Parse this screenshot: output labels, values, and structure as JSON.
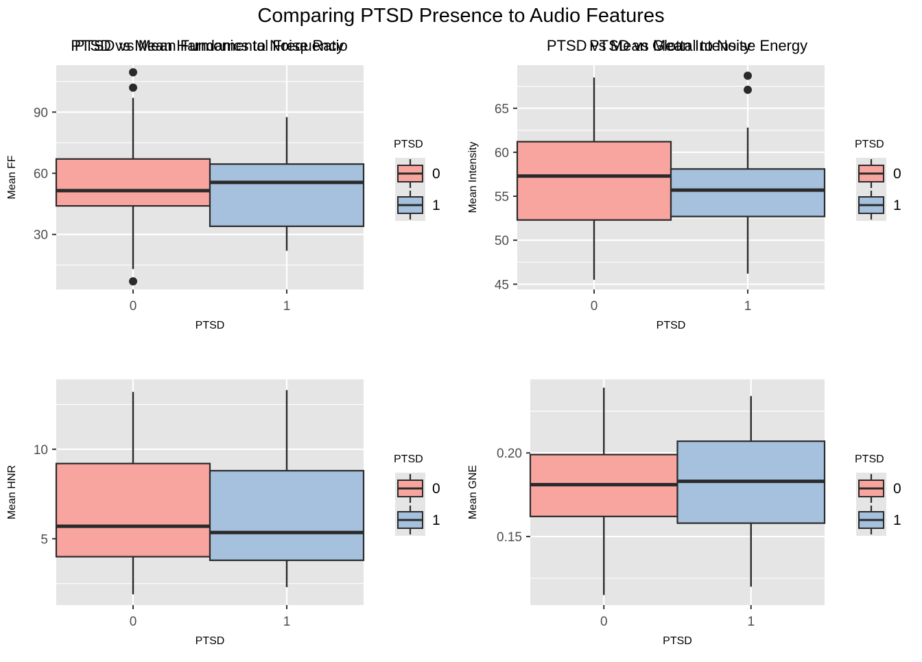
{
  "title": "Comparing PTSD Presence to Audio Features",
  "colors": {
    "panel_bg": "#e5e5e5",
    "grid": "#ffffff",
    "box_0": "#f8a5a0",
    "box_1": "#a6c1dd",
    "stroke": "#2a2a2a",
    "tick_text": "#4d4d4d"
  },
  "chart_data": [
    {
      "type": "box",
      "title": "PTSD vs Mean Fundamental Frequency",
      "xlabel": "PTSD",
      "ylabel": "Mean FF",
      "categories": [
        "0",
        "1"
      ],
      "ylim": [
        3,
        113
      ],
      "yticks": [
        30,
        60,
        90
      ],
      "ytick_labels": [
        "30",
        "60",
        "90"
      ],
      "minor_yticks": [
        15,
        45,
        75,
        105
      ],
      "boxes": [
        {
          "category": "0",
          "whisker_low": 13,
          "q1": 44,
          "median": 51.5,
          "q3": 67,
          "whisker_high": 97,
          "outliers": [
            7,
            102,
            109.5
          ]
        },
        {
          "category": "1",
          "whisker_low": 22,
          "q1": 34,
          "median": 55.5,
          "q3": 64.5,
          "whisker_high": 87.5,
          "outliers": []
        }
      ],
      "legend": {
        "title": "PTSD",
        "position": "right",
        "entries": [
          "0",
          "1"
        ]
      },
      "grid": true
    },
    {
      "type": "box",
      "title": "PTSD vs Mean Intensity",
      "xlabel": "PTSD",
      "ylabel": "Mean Intensity",
      "categories": [
        "0",
        "1"
      ],
      "ylim": [
        44.4,
        69.9
      ],
      "yticks": [
        45,
        50,
        55,
        60,
        65
      ],
      "ytick_labels": [
        "45",
        "50",
        "55",
        "60",
        "65"
      ],
      "minor_yticks": [
        47.5,
        52.5,
        57.5,
        62.5,
        67.5
      ],
      "boxes": [
        {
          "category": "0",
          "whisker_low": 45.5,
          "q1": 52.3,
          "median": 57.3,
          "q3": 61.2,
          "whisker_high": 68.5,
          "outliers": []
        },
        {
          "category": "1",
          "whisker_low": 46.2,
          "q1": 52.7,
          "median": 55.7,
          "q3": 58.1,
          "whisker_high": 62.8,
          "outliers": [
            67.1,
            68.7
          ]
        }
      ],
      "legend": {
        "title": "PTSD",
        "position": "right",
        "entries": [
          "0",
          "1"
        ]
      },
      "grid": true
    },
    {
      "type": "box",
      "title": "PTSD vs Mean Harmonics to Noise Ratio",
      "xlabel": "PTSD",
      "ylabel": "Mean HNR",
      "categories": [
        "0",
        "1"
      ],
      "ylim": [
        1.3,
        13.9
      ],
      "yticks": [
        5,
        10
      ],
      "ytick_labels": [
        "5",
        "10"
      ],
      "minor_yticks": [
        2.5,
        7.5,
        12.5
      ],
      "boxes": [
        {
          "category": "0",
          "whisker_low": 1.9,
          "q1": 4.0,
          "median": 5.7,
          "q3": 9.2,
          "whisker_high": 13.2,
          "outliers": []
        },
        {
          "category": "1",
          "whisker_low": 2.3,
          "q1": 3.8,
          "median": 5.35,
          "q3": 8.8,
          "whisker_high": 13.3,
          "outliers": []
        }
      ],
      "legend": {
        "title": "PTSD",
        "position": "right",
        "entries": [
          "0",
          "1"
        ]
      },
      "grid": true
    },
    {
      "type": "box",
      "title": "PTSD vs Mean Glottal to Noise Energy",
      "xlabel": "PTSD",
      "ylabel": "Mean GNE",
      "categories": [
        "0",
        "1"
      ],
      "ylim": [
        0.109,
        0.244
      ],
      "yticks": [
        0.15,
        0.2
      ],
      "ytick_labels": [
        "0.15",
        "0.20"
      ],
      "minor_yticks": [
        0.125,
        0.175,
        0.225
      ],
      "boxes": [
        {
          "category": "0",
          "whisker_low": 0.115,
          "q1": 0.162,
          "median": 0.181,
          "q3": 0.199,
          "whisker_high": 0.239,
          "outliers": []
        },
        {
          "category": "1",
          "whisker_low": 0.12,
          "q1": 0.158,
          "median": 0.183,
          "q3": 0.207,
          "whisker_high": 0.234,
          "outliers": []
        }
      ],
      "legend": {
        "title": "PTSD",
        "position": "right",
        "entries": [
          "0",
          "1"
        ]
      },
      "grid": true
    }
  ]
}
